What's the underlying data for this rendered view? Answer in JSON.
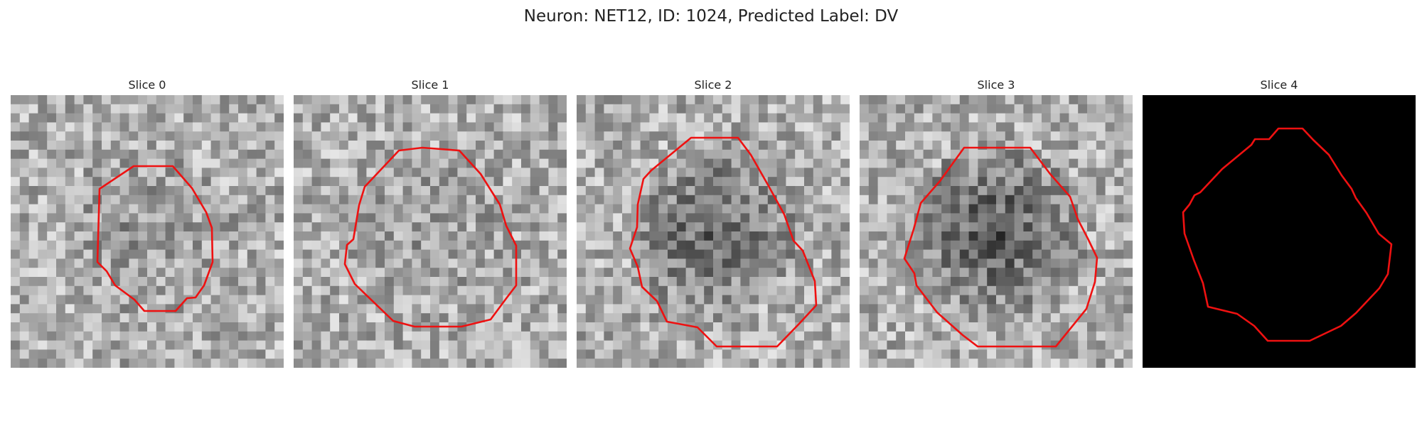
{
  "figure": {
    "title": "Neuron: NET12, ID: 1024, Predicted Label: DV"
  },
  "slices": [
    {
      "title": "Slice 0",
      "seed": 11,
      "kind": "tissue",
      "dark_center": 0.15
    },
    {
      "title": "Slice 1",
      "seed": 23,
      "kind": "tissue",
      "dark_center": 0.1
    },
    {
      "title": "Slice 2",
      "seed": 37,
      "kind": "tissue",
      "dark_center": 0.45
    },
    {
      "title": "Slice 3",
      "seed": 53,
      "kind": "tissue",
      "dark_center": 0.55
    },
    {
      "title": "Slice 4",
      "seed": 71,
      "kind": "blank",
      "dark_center": 1.0
    }
  ],
  "colors": {
    "contour": "#ee1111",
    "blank_background": "#000000"
  }
}
